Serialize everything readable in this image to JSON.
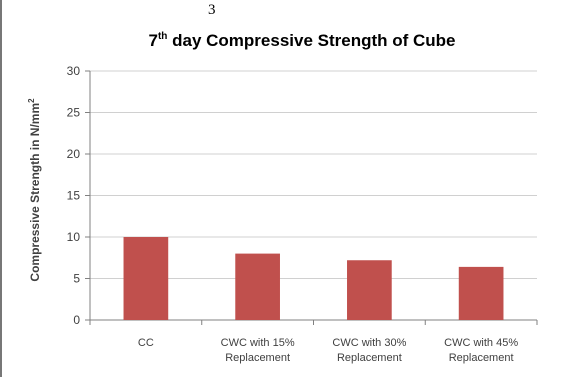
{
  "page_number": "3",
  "chart_data": {
    "type": "bar",
    "title_main": "7",
    "title_sup": "th",
    "title_rest": " day Compressive Strength of Cube",
    "xlabel": "",
    "ylabel": "Compressive Strength in N/mm",
    "ylabel_sup": "2",
    "ylim": [
      0,
      30
    ],
    "yticks": [
      0,
      5,
      10,
      15,
      20,
      25,
      30
    ],
    "grid": true,
    "legend": "none",
    "categories": [
      [
        "CC"
      ],
      [
        "CWC with  15%",
        "Replacement"
      ],
      [
        "CWC with  30%",
        "Replacement"
      ],
      [
        "CWC with  45%",
        "Replacement"
      ]
    ],
    "values": [
      10,
      8,
      7.2,
      6.4
    ],
    "bar_color": "#c0504d"
  }
}
